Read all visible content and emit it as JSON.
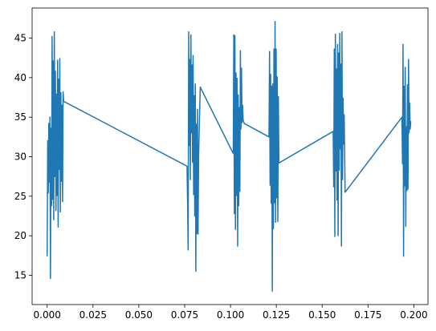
{
  "chart_data": {
    "type": "line",
    "title": "",
    "xlabel": "",
    "ylabel": "",
    "xlim": [
      -0.0082,
      0.2077
    ],
    "ylim": [
      11.3,
      48.8
    ],
    "grid": false,
    "line_color": "#1f77b4",
    "x_ticks": [
      {
        "value": 0.0,
        "label": "0.000"
      },
      {
        "value": 0.025,
        "label": "0.025"
      },
      {
        "value": 0.05,
        "label": "0.050"
      },
      {
        "value": 0.075,
        "label": "0.075"
      },
      {
        "value": 0.1,
        "label": "0.100"
      },
      {
        "value": 0.125,
        "label": "0.125"
      },
      {
        "value": 0.15,
        "label": "0.150"
      },
      {
        "value": 0.175,
        "label": "0.175"
      },
      {
        "value": 0.2,
        "label": "0.200"
      }
    ],
    "y_ticks": [
      {
        "value": 15,
        "label": "15"
      },
      {
        "value": 20,
        "label": "20"
      },
      {
        "value": 25,
        "label": "25"
      },
      {
        "value": 30,
        "label": "30"
      },
      {
        "value": 35,
        "label": "35"
      },
      {
        "value": 40,
        "label": "40"
      },
      {
        "value": 45,
        "label": "45"
      }
    ],
    "series": [
      {
        "color": "#1f77b4",
        "points": [
          [
            0.0,
            17.4
          ],
          [
            0.0003,
            32.0
          ],
          [
            0.0006,
            25.4
          ],
          [
            0.0009,
            34.2
          ],
          [
            0.0012,
            26.8
          ],
          [
            0.0015,
            35.0
          ],
          [
            0.0018,
            14.6
          ],
          [
            0.0021,
            33.6
          ],
          [
            0.0024,
            23.8
          ],
          [
            0.0027,
            45.2
          ],
          [
            0.003,
            24.6
          ],
          [
            0.0033,
            42.1
          ],
          [
            0.0036,
            22.0
          ],
          [
            0.0039,
            45.8
          ],
          [
            0.0042,
            27.5
          ],
          [
            0.0045,
            40.8
          ],
          [
            0.0048,
            23.2
          ],
          [
            0.0051,
            37.9
          ],
          [
            0.0054,
            25.1
          ],
          [
            0.0057,
            42.2
          ],
          [
            0.006,
            21.1
          ],
          [
            0.0063,
            39.8
          ],
          [
            0.0066,
            28.4
          ],
          [
            0.0069,
            42.4
          ],
          [
            0.0072,
            23.0
          ],
          [
            0.0075,
            38.1
          ],
          [
            0.0078,
            26.9
          ],
          [
            0.0081,
            36.5
          ],
          [
            0.0084,
            24.3
          ],
          [
            0.0087,
            38.2
          ],
          [
            0.009,
            37.0
          ],
          [
            0.0763,
            28.8
          ],
          [
            0.0766,
            24.1
          ],
          [
            0.0769,
            18.2
          ],
          [
            0.0772,
            45.8
          ],
          [
            0.0775,
            31.4
          ],
          [
            0.0778,
            42.3
          ],
          [
            0.0781,
            27.1
          ],
          [
            0.0784,
            45.4
          ],
          [
            0.0787,
            33.0
          ],
          [
            0.079,
            41.6
          ],
          [
            0.0793,
            29.3
          ],
          [
            0.0796,
            42.8
          ],
          [
            0.0799,
            25.2
          ],
          [
            0.0802,
            37.7
          ],
          [
            0.0805,
            22.5
          ],
          [
            0.0808,
            39.2
          ],
          [
            0.0811,
            15.5
          ],
          [
            0.0814,
            34.1
          ],
          [
            0.0817,
            20.3
          ],
          [
            0.082,
            36.0
          ],
          [
            0.0823,
            20.2
          ],
          [
            0.0826,
            30.0
          ],
          [
            0.0835,
            38.8
          ],
          [
            0.1015,
            30.4
          ],
          [
            0.1018,
            45.4
          ],
          [
            0.1021,
            22.8
          ],
          [
            0.1024,
            45.3
          ],
          [
            0.1027,
            20.8
          ],
          [
            0.103,
            40.6
          ],
          [
            0.1033,
            25.1
          ],
          [
            0.1036,
            39.9
          ],
          [
            0.1039,
            18.7
          ],
          [
            0.1042,
            37.8
          ],
          [
            0.1045,
            23.8
          ],
          [
            0.1048,
            36.2
          ],
          [
            0.1051,
            25.6
          ],
          [
            0.1054,
            43.4
          ],
          [
            0.1057,
            33.5
          ],
          [
            0.106,
            41.2
          ],
          [
            0.1063,
            34.3
          ],
          [
            0.1066,
            36.5
          ],
          [
            0.1069,
            34.6
          ],
          [
            0.1075,
            34.2
          ],
          [
            0.121,
            32.5
          ],
          [
            0.1213,
            43.3
          ],
          [
            0.1216,
            26.4
          ],
          [
            0.1219,
            40.4
          ],
          [
            0.1222,
            24.1
          ],
          [
            0.1225,
            38.9
          ],
          [
            0.1228,
            13.0
          ],
          [
            0.1231,
            39.2
          ],
          [
            0.1234,
            20.9
          ],
          [
            0.1237,
            43.6
          ],
          [
            0.124,
            24.2
          ],
          [
            0.1243,
            47.1
          ],
          [
            0.1246,
            21.7
          ],
          [
            0.1249,
            43.6
          ],
          [
            0.1252,
            24.8
          ],
          [
            0.1255,
            40.1
          ],
          [
            0.1258,
            21.8
          ],
          [
            0.1261,
            37.6
          ],
          [
            0.1264,
            29.2
          ],
          [
            0.156,
            33.2
          ],
          [
            0.1563,
            26.2
          ],
          [
            0.1566,
            43.6
          ],
          [
            0.1569,
            19.9
          ],
          [
            0.1572,
            45.5
          ],
          [
            0.1575,
            28.2
          ],
          [
            0.1578,
            41.1
          ],
          [
            0.1581,
            24.5
          ],
          [
            0.1584,
            44.2
          ],
          [
            0.1587,
            20.0
          ],
          [
            0.159,
            43.1
          ],
          [
            0.1593,
            28.3
          ],
          [
            0.1596,
            45.6
          ],
          [
            0.1599,
            31.0
          ],
          [
            0.1602,
            41.7
          ],
          [
            0.1605,
            18.7
          ],
          [
            0.1608,
            45.8
          ],
          [
            0.1611,
            27.1
          ],
          [
            0.1614,
            37.4
          ],
          [
            0.1617,
            31.6
          ],
          [
            0.162,
            35.3
          ],
          [
            0.1625,
            25.5
          ],
          [
            0.1935,
            35.0
          ],
          [
            0.1938,
            29.1
          ],
          [
            0.1941,
            44.2
          ],
          [
            0.1944,
            17.4
          ],
          [
            0.1947,
            38.9
          ],
          [
            0.195,
            26.3
          ],
          [
            0.1953,
            41.3
          ],
          [
            0.1956,
            21.2
          ],
          [
            0.1959,
            33.8
          ],
          [
            0.1962,
            25.7
          ],
          [
            0.1965,
            39.1
          ],
          [
            0.1968,
            25.9
          ],
          [
            0.1971,
            42.3
          ],
          [
            0.1974,
            33.0
          ],
          [
            0.1977,
            36.8
          ],
          [
            0.198,
            33.5
          ],
          [
            0.1983,
            34.5
          ]
        ]
      }
    ]
  }
}
